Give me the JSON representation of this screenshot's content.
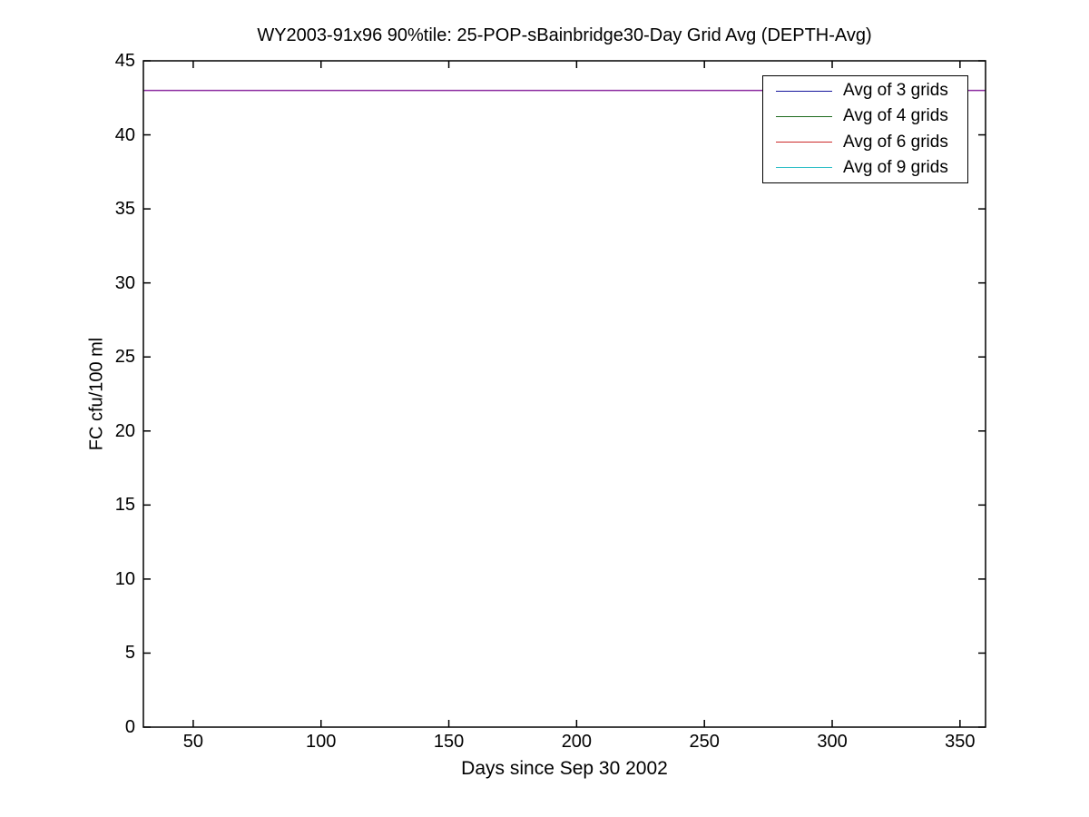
{
  "chart_data": {
    "type": "line",
    "title": "WY2003-91x96 90%tile: 25-POP-sBainbridge30-Day Grid Avg (DEPTH-Avg)",
    "xlabel": "Days since Sep 30 2002",
    "ylabel": "FC cfu/100 ml",
    "xlim": [
      30.5,
      360
    ],
    "ylim": [
      0,
      45
    ],
    "xticks": [
      50,
      100,
      150,
      200,
      250,
      300,
      350
    ],
    "yticks": [
      0,
      5,
      10,
      15,
      20,
      25,
      30,
      35,
      40,
      45
    ],
    "grid": false,
    "legend_position": "top-right",
    "series": [
      {
        "name": "Avg of 3 grids",
        "color": "#15159B",
        "x": [
          30.5,
          360
        ],
        "values": [
          43,
          43
        ]
      },
      {
        "name": "Avg of 4 grids",
        "color": "#1E6B1E",
        "x": [
          30.5,
          360
        ],
        "values": [
          43,
          43
        ]
      },
      {
        "name": "Avg of 6 grids",
        "color": "#CC2929",
        "x": [
          30.5,
          360
        ],
        "values": [
          43,
          43
        ]
      },
      {
        "name": "Avg of 9 grids",
        "color": "#30BFC7",
        "x": [
          30.5,
          360
        ],
        "values": [
          43,
          43
        ]
      }
    ],
    "visible_line": {
      "y": 43,
      "color": "#8C2DA0"
    },
    "axis_color": "#000000",
    "background": "#ffffff"
  }
}
